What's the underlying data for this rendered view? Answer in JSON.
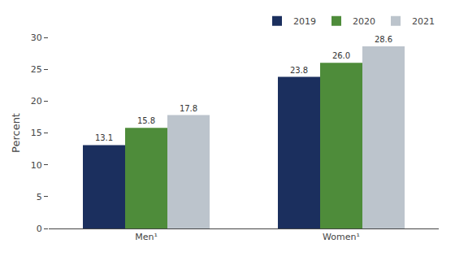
{
  "chart_data": {
    "type": "bar",
    "categories": [
      "Men¹",
      "Women¹"
    ],
    "series": [
      {
        "name": "2019",
        "color": "#1b2f5e",
        "values": [
          13.1,
          23.8
        ],
        "value_labels": [
          "13.1",
          "23.8"
        ]
      },
      {
        "name": "2020",
        "color": "#4e8c3a",
        "values": [
          15.8,
          26.0
        ],
        "value_labels": [
          "15.8",
          "26.0"
        ]
      },
      {
        "name": "2021",
        "color": "#bcc4cc",
        "values": [
          17.8,
          28.6
        ],
        "value_labels": [
          "17.8",
          "28.6"
        ]
      }
    ],
    "ylabel": "Percent",
    "ylim": [
      0,
      30
    ],
    "yticks": [
      0,
      5,
      10,
      15,
      20,
      25,
      30
    ],
    "grid": false,
    "legend": "upper right",
    "data_labels": true
  }
}
